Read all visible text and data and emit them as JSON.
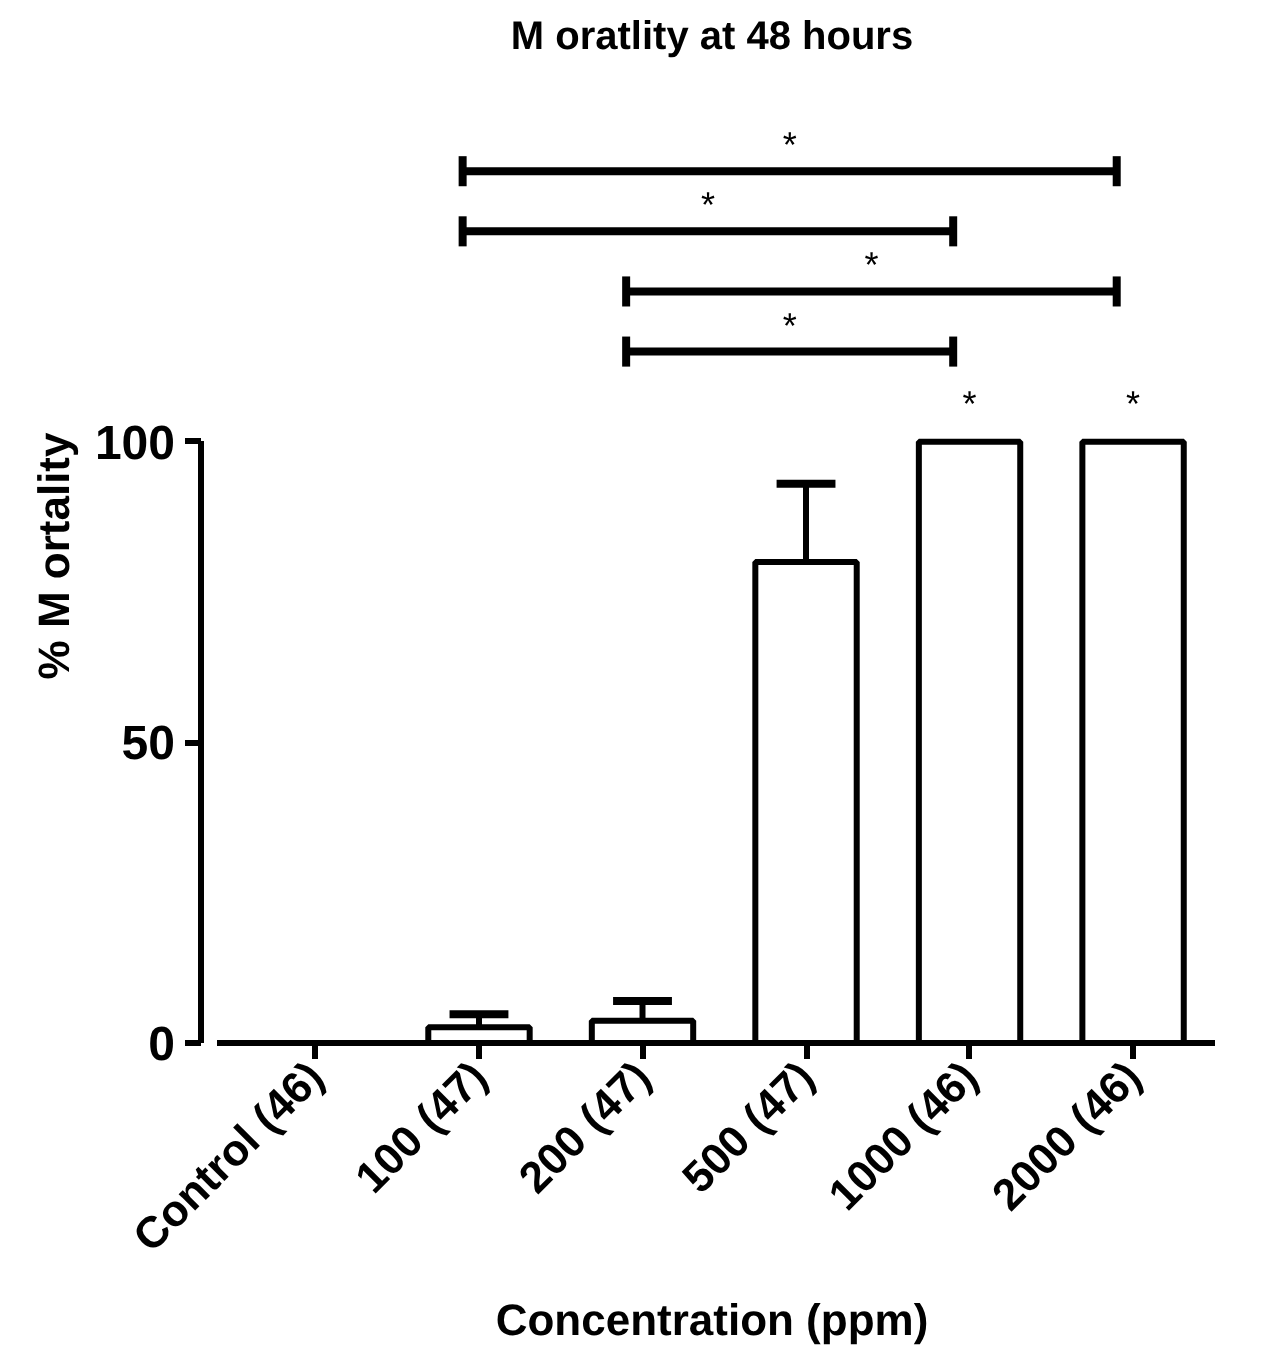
{
  "chart_data": {
    "type": "bar",
    "title": "M oratlity at 48 hours",
    "xlabel": "Concentration (ppm)",
    "ylabel": "% M ortality",
    "categories": [
      "Control (46)",
      "100 (47)",
      "200 (47)",
      "500 (47)",
      "1000 (46)",
      "2000 (46)"
    ],
    "values": [
      0,
      2.6,
      3.7,
      80,
      100,
      100
    ],
    "color": "#ffffff",
    "errors": [
      null,
      [
        2.6,
        4.8
      ],
      [
        3.7,
        7
      ],
      [
        80,
        93
      ],
      null,
      null
    ],
    "ylim": [
      0,
      100
    ],
    "yticks": [
      0,
      50,
      100
    ],
    "grid": false,
    "annotations": [
      "*",
      "*",
      "*",
      "*",
      "*",
      "*"
    ]
  }
}
